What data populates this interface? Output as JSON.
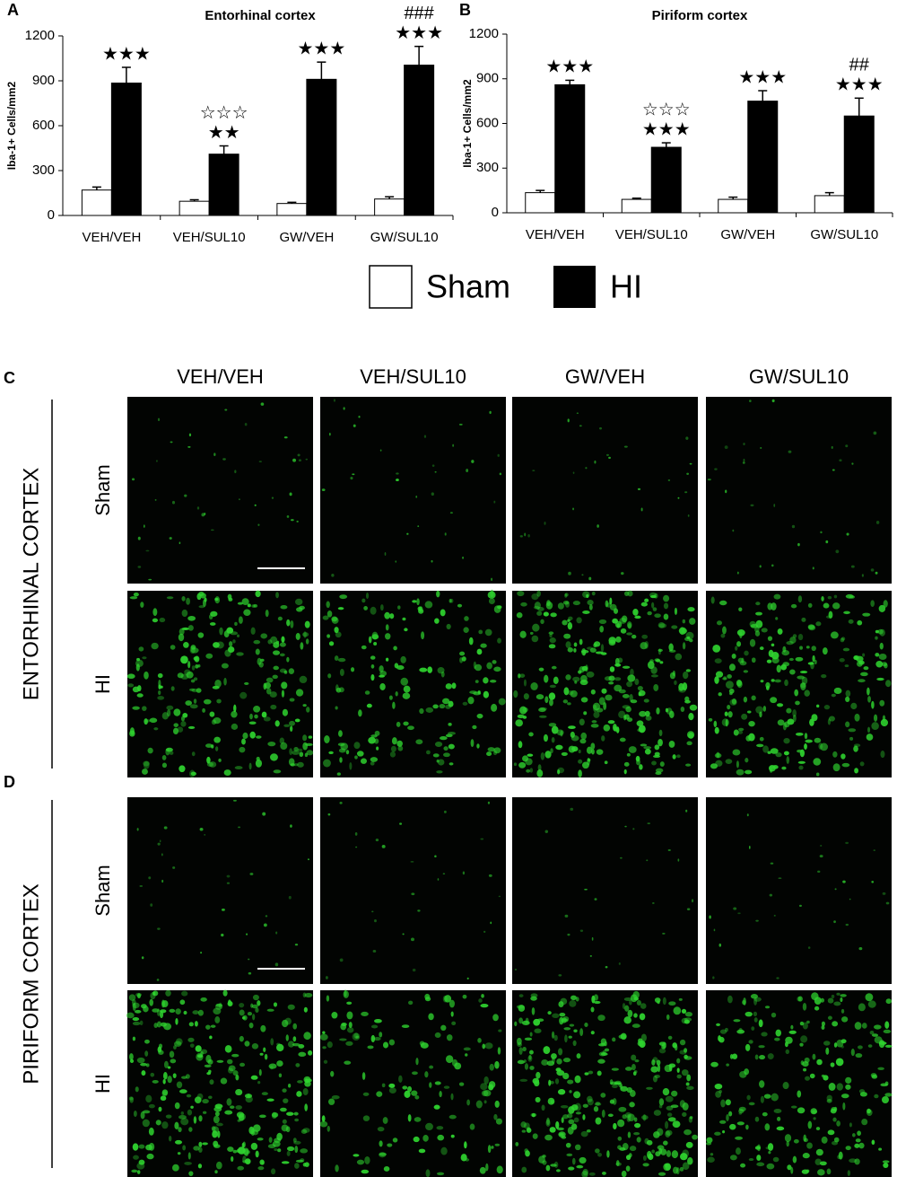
{
  "chart_data": [
    {
      "type": "bar",
      "label": "A",
      "title": "Entorhinal cortex",
      "y_label": "Iba-1+ Cells/mm2",
      "categories": [
        "VEH/VEH",
        "VEH/SUL10",
        "GW/VEH",
        "GW/SUL10"
      ],
      "series": [
        {
          "name": "Sham",
          "color": "#ffffff",
          "values": [
            170,
            95,
            80,
            110
          ],
          "errors": [
            20,
            10,
            8,
            15
          ]
        },
        {
          "name": "HI",
          "color": "#000000",
          "values": [
            885,
            410,
            910,
            1005
          ],
          "errors": [
            105,
            55,
            115,
            125
          ],
          "annotations": [
            [
              "★★★"
            ],
            [
              "☆☆☆",
              "★★"
            ],
            [
              "★★★"
            ],
            [
              "###",
              "★★★"
            ]
          ]
        }
      ],
      "ylim": [
        0,
        1200
      ],
      "yticks": [
        0,
        300,
        600,
        900,
        1200
      ]
    },
    {
      "type": "bar",
      "label": "B",
      "title": "Piriform cortex",
      "y_label": "Iba-1+ Cells/mm2",
      "categories": [
        "VEH/VEH",
        "VEH/SUL10",
        "GW/VEH",
        "GW/SUL10"
      ],
      "series": [
        {
          "color": "#ffffff",
          "values": [
            135,
            90,
            90,
            115
          ],
          "errors": [
            15,
            8,
            15,
            20
          ]
        },
        {
          "color": "#000000",
          "values": [
            860,
            440,
            750,
            650
          ],
          "errors": [
            30,
            30,
            70,
            120
          ],
          "annotations": [
            [
              "★★★"
            ],
            [
              "☆☆☆",
              "★★★"
            ],
            [
              "★★★"
            ],
            [
              "##",
              "★★★"
            ]
          ]
        }
      ],
      "ylim": [
        0,
        1200
      ],
      "yticks": [
        0,
        300,
        600,
        900,
        1200
      ]
    }
  ],
  "images": {
    "columns": [
      "VEH/VEH",
      "VEH/SUL10",
      "GW/VEH",
      "GW/SUL10"
    ],
    "rows": [
      "Sham",
      "HI"
    ],
    "panels": [
      {
        "label": "C",
        "region": "ENTORHINAL CORTEX"
      },
      {
        "label": "D",
        "region": "PIRIFORM CORTEX"
      }
    ]
  }
}
